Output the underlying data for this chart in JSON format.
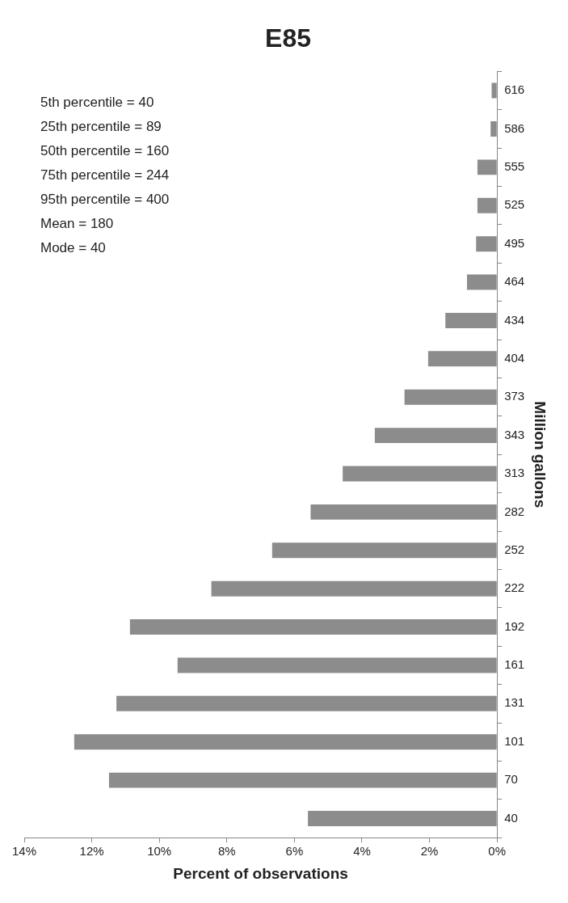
{
  "chart_data": {
    "type": "bar",
    "orientation": "horizontal",
    "title": "E85",
    "xlabel": "Percent of observations",
    "ylabel": "Million gallons",
    "categories": [
      "616",
      "586",
      "555",
      "525",
      "495",
      "464",
      "434",
      "404",
      "373",
      "343",
      "313",
      "282",
      "252",
      "222",
      "192",
      "161",
      "131",
      "101",
      "70",
      "40"
    ],
    "values": [
      0.16,
      0.19,
      0.58,
      0.58,
      0.62,
      0.89,
      1.53,
      2.04,
      2.74,
      3.62,
      4.57,
      5.52,
      6.66,
      8.46,
      10.87,
      9.46,
      11.27,
      12.52,
      11.49,
      5.6
    ],
    "color": "#8c8c8c",
    "xlim": [
      14,
      0
    ],
    "xticks": [
      {
        "value": 14,
        "label": "14%"
      },
      {
        "value": 12,
        "label": "12%"
      },
      {
        "value": 10,
        "label": "10%"
      },
      {
        "value": 8,
        "label": "8%"
      },
      {
        "value": 6,
        "label": "6%"
      },
      {
        "value": 4,
        "label": "4%"
      },
      {
        "value": 2,
        "label": "2%"
      },
      {
        "value": 0,
        "label": "0%"
      }
    ],
    "grid": false,
    "legend": false,
    "annotations": [
      "5th percentile = 40",
      "25th percentile = 89",
      "50th percentile = 160",
      "75th percentile = 244",
      "95th percentile = 400",
      "Mean = 180",
      "Mode = 40"
    ]
  }
}
